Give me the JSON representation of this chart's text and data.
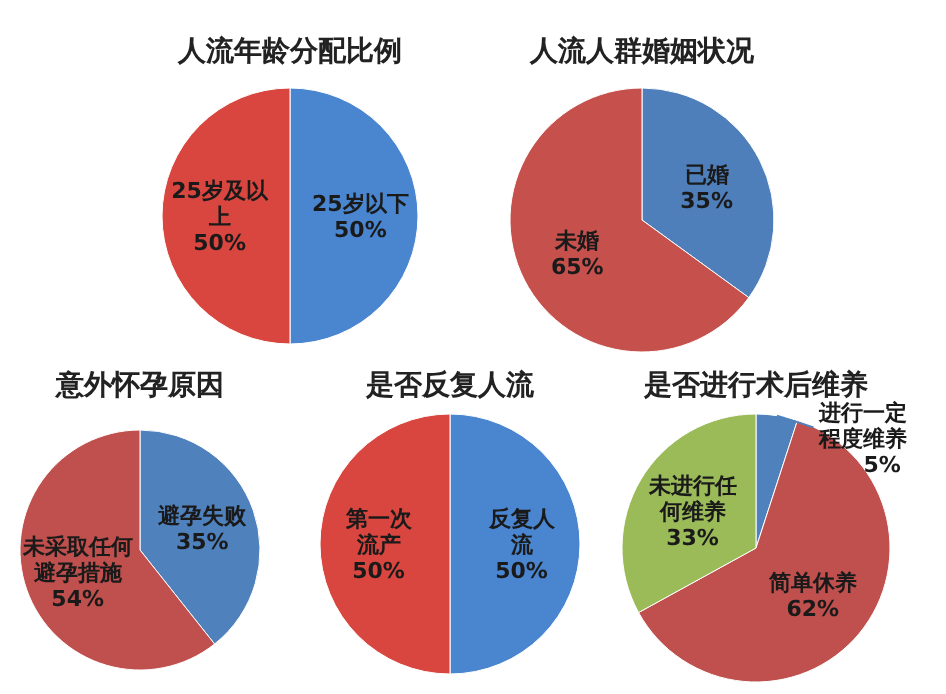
{
  "chart_data": [
    {
      "type": "pie",
      "title": "人流年龄分配比例",
      "categories": [
        "25岁以下",
        "25岁及以上"
      ],
      "values": [
        50,
        50
      ],
      "colors": [
        "#4a86d0",
        "#d9463f"
      ],
      "value_labels": [
        "50%",
        "50%"
      ]
    },
    {
      "type": "pie",
      "title": "人流人群婚姻状况",
      "categories": [
        "已婚",
        "未婚"
      ],
      "values": [
        35,
        65
      ],
      "colors": [
        "#4f7fbb",
        "#c5504c"
      ],
      "value_labels": [
        "35%",
        "65%"
      ]
    },
    {
      "type": "pie",
      "title": "意外怀孕原因",
      "categories": [
        "避孕失败",
        "未采取任何避孕措施"
      ],
      "values": [
        35,
        54
      ],
      "colors": [
        "#4f81bd",
        "#c0504d"
      ],
      "value_labels": [
        "35%",
        "54%"
      ]
    },
    {
      "type": "pie",
      "title": "是否反复人流",
      "categories": [
        "反复人流",
        "第一次流产"
      ],
      "values": [
        50,
        50
      ],
      "colors": [
        "#4a86d0",
        "#d9463f"
      ],
      "value_labels": [
        "50%",
        "50%"
      ]
    },
    {
      "type": "pie",
      "title": "是否进行术后维养",
      "categories": [
        "进行一定程度维养",
        "简单休养",
        "未进行任何维养"
      ],
      "values": [
        5,
        62,
        33
      ],
      "colors": [
        "#4f81bd",
        "#c0504d",
        "#9bbb59"
      ],
      "value_labels": [
        "5%",
        "62%",
        "33%"
      ]
    }
  ]
}
